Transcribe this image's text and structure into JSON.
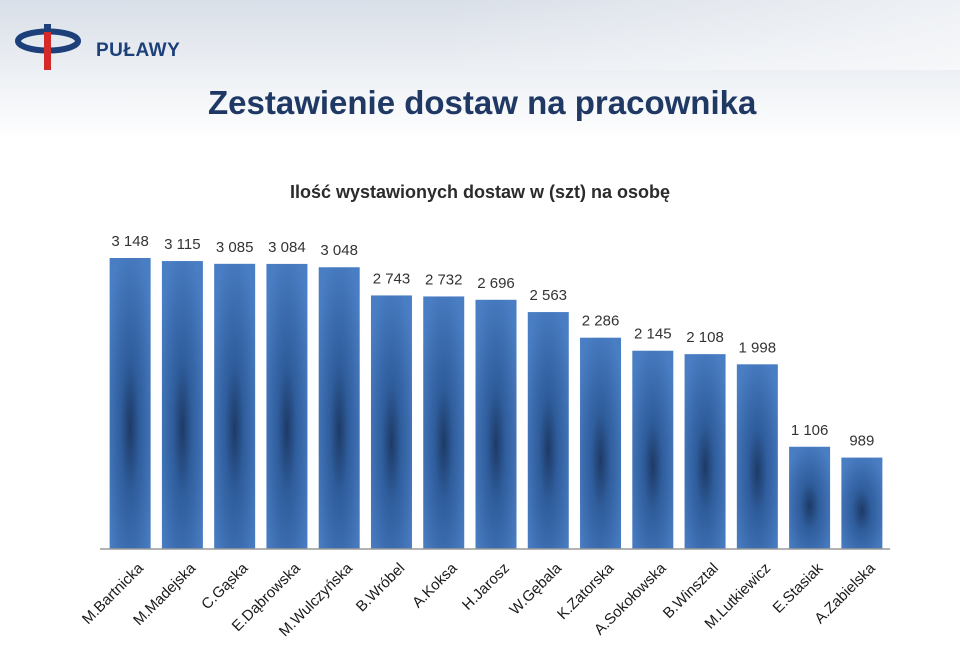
{
  "header": {
    "logo_text": "PUŁAWY",
    "page_title": "Zestawienie dostaw na pracownika"
  },
  "colors": {
    "bar": "#4a7ec4",
    "bar_dark": "#1d3a66",
    "title": "#1f3864",
    "logo_red": "#d42a2a",
    "logo_blue": "#1d3f7a"
  },
  "chart_data": {
    "type": "bar",
    "title": "Ilość wystawionych dostaw w (szt) na osobę",
    "categories": [
      "M.Bartnicka",
      "M.Madejska",
      "C.Gąska",
      "E.Dąbrowska",
      "M.Wulczyńska",
      "B.Wróbel",
      "A.Koksa",
      "H.Jarosz",
      "W.Gębala",
      "K.Zatorska",
      "A.Sokołowska",
      "B.Winsztal",
      "M.Lutkiewicz",
      "E.Stasiak",
      "A.Zabielska"
    ],
    "values": [
      3148,
      3115,
      3085,
      3084,
      3048,
      2743,
      2732,
      2696,
      2563,
      2286,
      2145,
      2108,
      1998,
      1106,
      989
    ],
    "value_labels": [
      "3 148",
      "3 115",
      "3 085",
      "3 084",
      "3 048",
      "2 743",
      "2 732",
      "2 696",
      "2 563",
      "2 286",
      "2 145",
      "2 108",
      "1 998",
      "1 106",
      "989"
    ],
    "ylim": [
      0,
      3500
    ],
    "grid": false,
    "legend": "none"
  }
}
